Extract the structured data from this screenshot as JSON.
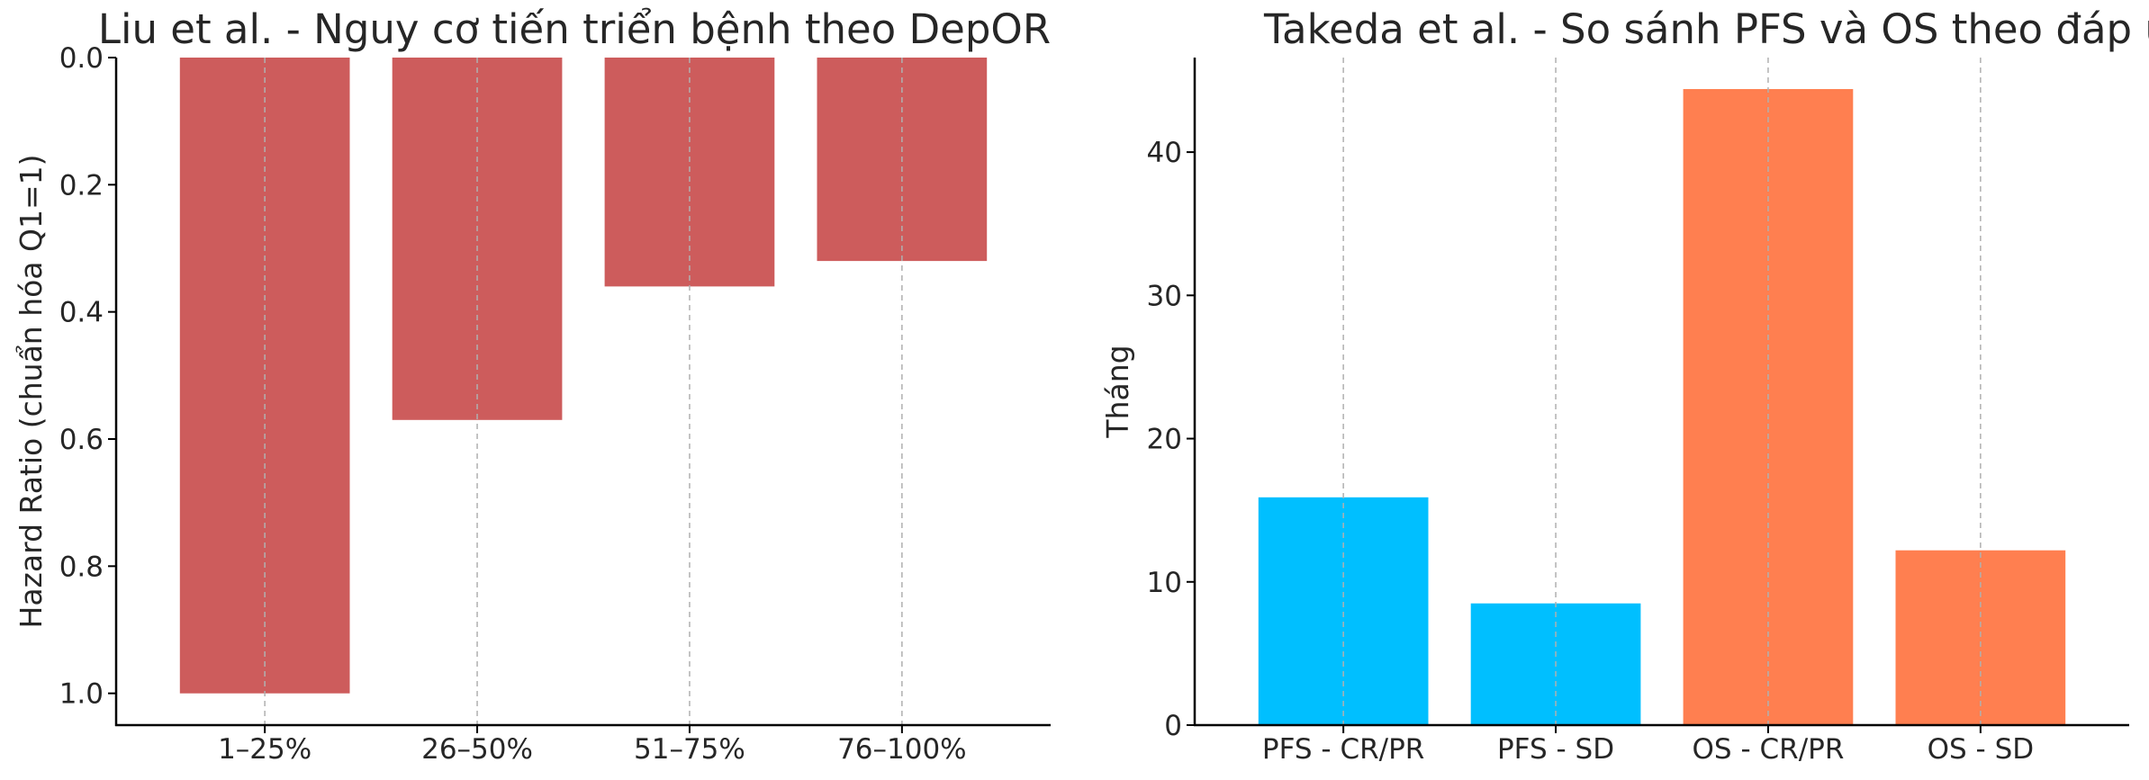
{
  "chart_data": [
    {
      "type": "bar",
      "title": "Liu et al. - Nguy cơ tiến triển bệnh theo DepOR",
      "xlabel": "",
      "ylabel": "Hazard Ratio (chuẩn hóa Q1=1)",
      "categories": [
        "1–25%",
        "26–50%",
        "51–75%",
        "76–100%"
      ],
      "values": [
        1.0,
        0.57,
        0.36,
        0.32
      ],
      "colors": [
        "#cd5c5c",
        "#cd5c5c",
        "#cd5c5c",
        "#cd5c5c"
      ],
      "ylim": [
        0,
        1.05
      ],
      "y_inverted": true,
      "yticks": [
        "0.0",
        "0.2",
        "0.4",
        "0.6",
        "0.8",
        "1.0"
      ],
      "grid": "x-dashed"
    },
    {
      "type": "bar",
      "title": "Takeda et al. - So sánh PFS và OS theo đáp ứng",
      "xlabel": "",
      "ylabel": "Tháng",
      "categories": [
        "PFS - CR/PR",
        "PFS - SD",
        "OS - CR/PR",
        "OS - SD"
      ],
      "values": [
        15.9,
        8.5,
        44.4,
        12.2
      ],
      "colors": [
        "#00bfff",
        "#00bfff",
        "#ff7f50",
        "#ff7f50"
      ],
      "ylim": [
        0,
        46.6
      ],
      "yticks": [
        "0",
        "10",
        "20",
        "30",
        "40"
      ],
      "grid": "x-dashed"
    }
  ]
}
